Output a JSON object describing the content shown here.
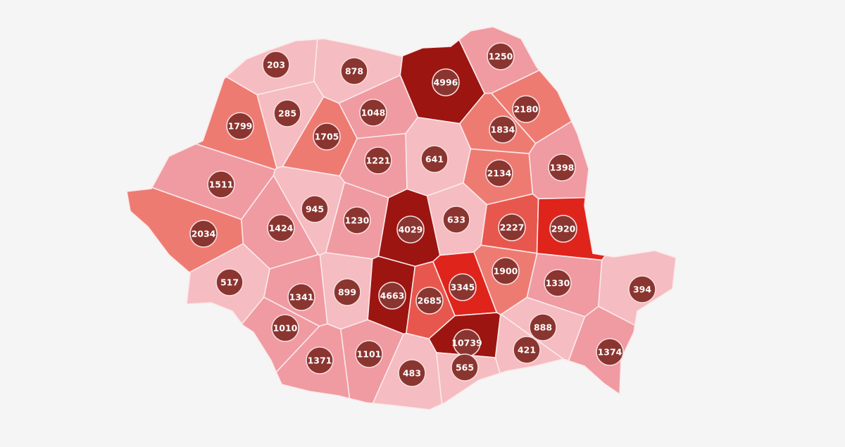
{
  "palette": {
    "background": "#f5f5f5",
    "badge": "#8a3530",
    "bins": [
      {
        "min": 0,
        "max": 999,
        "color": "#f5bcc1"
      },
      {
        "min": 1000,
        "max": 1699,
        "color": "#f09aa2"
      },
      {
        "min": 1700,
        "max": 2199,
        "color": "#ee7b72"
      },
      {
        "min": 2200,
        "max": 2799,
        "color": "#e8574d"
      },
      {
        "min": 2800,
        "max": 3999,
        "color": "#df241c"
      },
      {
        "min": 4000,
        "max": 100000,
        "color": "#9c1510"
      }
    ]
  },
  "counties": [
    {
      "value": "203"
    },
    {
      "value": "878"
    },
    {
      "value": "4996"
    },
    {
      "value": "1250"
    },
    {
      "value": "285"
    },
    {
      "value": "1048"
    },
    {
      "value": "1799"
    },
    {
      "value": "1705"
    },
    {
      "value": "1834"
    },
    {
      "value": "2180"
    },
    {
      "value": "1221"
    },
    {
      "value": "641"
    },
    {
      "value": "2134"
    },
    {
      "value": "1398"
    },
    {
      "value": "1511"
    },
    {
      "value": "945"
    },
    {
      "value": "1230"
    },
    {
      "value": "4029"
    },
    {
      "value": "633"
    },
    {
      "value": "2227"
    },
    {
      "value": "2920"
    },
    {
      "value": "2034"
    },
    {
      "value": "1424"
    },
    {
      "value": "517"
    },
    {
      "value": "1341"
    },
    {
      "value": "899"
    },
    {
      "value": "4663"
    },
    {
      "value": "2685"
    },
    {
      "value": "3345"
    },
    {
      "value": "1900"
    },
    {
      "value": "1330"
    },
    {
      "value": "394"
    },
    {
      "value": "1010"
    },
    {
      "value": "888"
    },
    {
      "value": "10739"
    },
    {
      "value": "421"
    },
    {
      "value": "1374"
    },
    {
      "value": "1371"
    },
    {
      "value": "1101"
    },
    {
      "value": "483"
    },
    {
      "value": "565"
    }
  ]
}
